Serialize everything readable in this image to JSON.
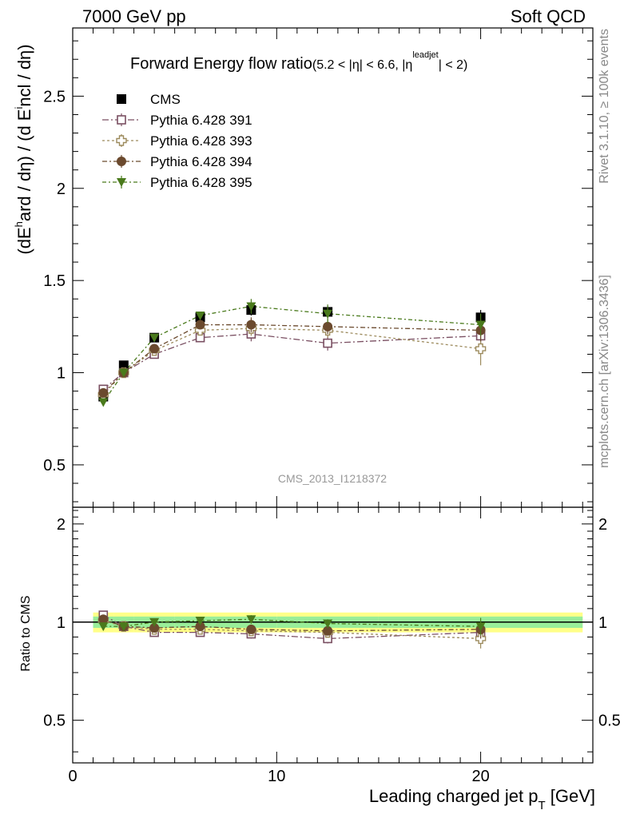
{
  "header": {
    "left": "7000 GeV pp",
    "right": "Soft QCD"
  },
  "side_labels": {
    "rivet": "Rivet 3.1.10, ≥ 100k events",
    "mcplots": "mcplots.cern.ch [arXiv:1306.3436]"
  },
  "chart_data": {
    "type": "scatter",
    "title": "Forward Energy flow ratio",
    "title_suffix": "(5.2 < |η| < 6.6, |η",
    "title_sup": "leadjet",
    "title_end": "| < 2)",
    "ylabel": "(dE^hard / dη) / (d E^incl / dη)",
    "ylabel_parts": [
      "(dE",
      "h",
      "ard / dη) / (d E",
      "i",
      "ncl / dη)"
    ],
    "xlabel": "Leading charged jet p",
    "xlabel_sub": "T",
    "xlabel_unit": " [GeV]",
    "watermark": "CMS_2013_I1218372",
    "xlim": [
      0,
      25.5
    ],
    "ylim": [
      0.27,
      2.87
    ],
    "x_ticks": [
      0,
      10,
      20
    ],
    "y_ticks": [
      0.5,
      1,
      1.5,
      2,
      2.5
    ],
    "y_tick_labels": [
      "0.5",
      "1",
      "1.5",
      "2",
      "2.5"
    ],
    "x": [
      1.5,
      2.5,
      4.0,
      6.25,
      8.75,
      12.5,
      20.0
    ],
    "series": [
      {
        "name": "CMS",
        "color": "#000000",
        "marker": "square-filled",
        "values": [
          0.87,
          1.04,
          1.19,
          1.3,
          1.34,
          1.33,
          1.3
        ],
        "errors": [
          0.03,
          0.02,
          0.02,
          0.03,
          0.03,
          0.03,
          0.04
        ]
      },
      {
        "name": "Pythia 6.428 391",
        "color": "#7a4f62",
        "marker": "square-open",
        "values": [
          0.91,
          1.0,
          1.1,
          1.19,
          1.21,
          1.16,
          1.2
        ],
        "errors": [
          0.02,
          0.02,
          0.02,
          0.02,
          0.04,
          0.04,
          0.06
        ]
      },
      {
        "name": "Pythia 6.428 393",
        "color": "#9c8a5c",
        "marker": "cross-open",
        "values": [
          0.88,
          1.0,
          1.12,
          1.23,
          1.24,
          1.23,
          1.13
        ],
        "errors": [
          0.02,
          0.02,
          0.02,
          0.02,
          0.04,
          0.04,
          0.09
        ]
      },
      {
        "name": "Pythia 6.428 394",
        "color": "#6b4a2e",
        "marker": "circle-filled",
        "values": [
          0.89,
          1.0,
          1.13,
          1.26,
          1.26,
          1.25,
          1.23
        ],
        "errors": [
          0.02,
          0.02,
          0.02,
          0.02,
          0.04,
          0.04,
          0.06
        ]
      },
      {
        "name": "Pythia 6.428 395",
        "color": "#4a7a1c",
        "marker": "triangle-down",
        "values": [
          0.84,
          1.0,
          1.19,
          1.31,
          1.36,
          1.32,
          1.26
        ],
        "errors": [
          0.02,
          0.02,
          0.02,
          0.02,
          0.04,
          0.05,
          0.06
        ]
      }
    ],
    "ratio": {
      "ylabel": "Ratio to CMS",
      "ylim": [
        0.37,
        2.25
      ],
      "y_ticks": [
        0.5,
        1,
        2
      ],
      "y_tick_labels": [
        "0.5",
        "1",
        "2"
      ],
      "band_inner": 0.04,
      "band_outer": 0.07,
      "series": [
        [
          1.05,
          0.97,
          0.93,
          0.93,
          0.92,
          0.89,
          0.93
        ],
        [
          1.01,
          0.97,
          0.95,
          0.95,
          0.94,
          0.93,
          0.89
        ],
        [
          1.02,
          0.97,
          0.96,
          0.97,
          0.95,
          0.94,
          0.95
        ],
        [
          0.97,
          0.97,
          1.0,
          1.01,
          1.02,
          0.99,
          0.97
        ]
      ],
      "errors": [
        0.02,
        0.02,
        0.02,
        0.02,
        0.03,
        0.03,
        0.06
      ]
    }
  }
}
